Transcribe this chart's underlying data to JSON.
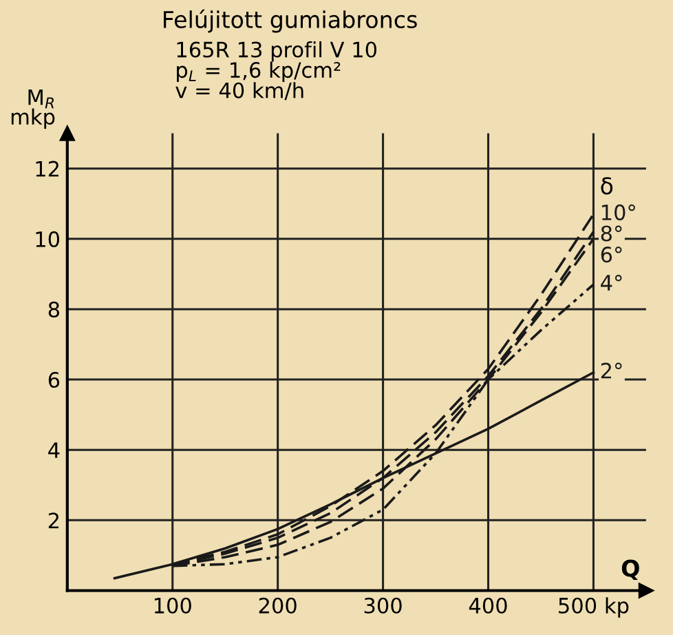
{
  "chart_data": {
    "type": "line",
    "title": "Felújitott gumiabroncs",
    "subtitle": "165R 13 profil V 10\np$_{L}$ = 1,6 kp/cm²\nv = 40 km/h",
    "xlabel": "Q",
    "ylabel": "M$_{R}$\nmkp",
    "legend_title": "δ",
    "x": [
      100,
      150,
      200,
      250,
      300,
      350,
      400,
      450,
      500
    ],
    "series": [
      {
        "name": "10°",
        "color": "#1a1a1a",
        "line_style": "dashed",
        "values": [
          0.75,
          1.1,
          1.6,
          2.4,
          3.4,
          4.7,
          6.3,
          8.4,
          10.7
        ]
      },
      {
        "name": "8°",
        "color": "#1a1a1a",
        "line_style": "dashed",
        "values": [
          0.72,
          1.05,
          1.5,
          2.2,
          3.2,
          4.5,
          6.1,
          8.0,
          10.2
        ]
      },
      {
        "name": "6°",
        "color": "#1a1a1a",
        "line_style": "dashed",
        "values": [
          0.7,
          0.95,
          1.3,
          1.95,
          2.9,
          4.3,
          6.0,
          7.9,
          10.0
        ]
      },
      {
        "name": "4°",
        "color": "#1a1a1a",
        "line_style": "dotted",
        "values": [
          0.7,
          0.75,
          0.95,
          1.5,
          2.3,
          3.9,
          6.0,
          7.4,
          8.7
        ]
      },
      {
        "name": "2°",
        "color": "#1a1a1a",
        "line_style": "solid",
        "x": [
          45,
          100,
          150,
          200,
          250,
          300,
          350,
          400,
          450,
          500
        ],
        "values": [
          0.35,
          0.75,
          1.2,
          1.75,
          2.45,
          3.2,
          3.9,
          4.6,
          5.4,
          6.2
        ]
      }
    ],
    "xlim": [
      0,
      550
    ],
    "ylim": [
      0,
      13
    ],
    "xticks": [
      100,
      200,
      300,
      400,
      {
        "value": 500,
        "label": "500 kp"
      }
    ],
    "yticks": [
      2,
      4,
      6,
      8,
      10,
      12
    ],
    "grid": true,
    "legend": false
  }
}
